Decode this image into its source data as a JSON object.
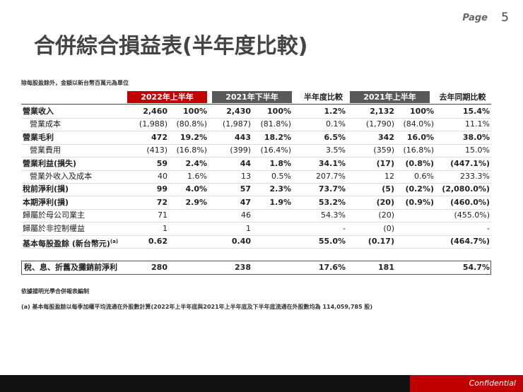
{
  "header": {
    "page_label": "Page",
    "page_number": "5",
    "title": "合併綜合損益表(半年度比較)"
  },
  "unit_note": "除每股盈餘外，金額以新台幣百萬元為單位",
  "table": {
    "headers": [
      "2022年上半年",
      "2021年下半年",
      "半年度比較",
      "2021年上半年",
      "去年同期比較"
    ],
    "rows": [
      {
        "label": "營業收入",
        "cells": [
          "2,460",
          "100%",
          "2,430",
          "100%",
          "1.2%",
          "2,132",
          "100%",
          "15.4%"
        ]
      },
      {
        "label": "營業成本",
        "cells": [
          "(1,988)",
          "(80.8%)",
          "(1,987)",
          "(81.8%)",
          "0.1%",
          "(1,790)",
          "(84.0%)",
          "11.1%"
        ]
      },
      {
        "label": "營業毛利",
        "cells": [
          "472",
          "19.2%",
          "443",
          "18.2%",
          "6.5%",
          "342",
          "16.0%",
          "38.0%"
        ]
      },
      {
        "label": "營業費用",
        "cells": [
          "(413)",
          "(16.8%)",
          "(399)",
          "(16.4%)",
          "3.5%",
          "(359)",
          "(16.8%)",
          "15.0%"
        ]
      },
      {
        "label": "營業利益(損失)",
        "cells": [
          "59",
          "2.4%",
          "44",
          "1.8%",
          "34.1%",
          "(17)",
          "(0.8%)",
          "(447.1%)"
        ]
      },
      {
        "label": "營業外收入及成本",
        "cells": [
          "40",
          "1.6%",
          "13",
          "0.5%",
          "207.7%",
          "12",
          "0.6%",
          "233.3%"
        ]
      },
      {
        "label": "稅前淨利(損)",
        "cells": [
          "99",
          "4.0%",
          "57",
          "2.3%",
          "73.7%",
          "(5)",
          "(0.2%)",
          "(2,080.0%)"
        ]
      },
      {
        "label": "本期淨利(損)",
        "cells": [
          "72",
          "2.9%",
          "47",
          "1.9%",
          "53.2%",
          "(20)",
          "(0.9%)",
          "(460.0%)"
        ]
      },
      {
        "label": "歸屬於母公司業主",
        "cells": [
          "71",
          null,
          "46",
          null,
          "54.3%",
          "(20)",
          null,
          "(455.0%)"
        ]
      },
      {
        "label": "歸屬於非控制權益",
        "cells": [
          "1",
          null,
          "1",
          null,
          "-",
          "(0)",
          null,
          "-"
        ]
      },
      {
        "label": "基本每股盈餘 (新台幣元)",
        "note": "(a)",
        "cells": [
          "0.62",
          null,
          "0.40",
          null,
          "55.0%",
          "(0.17)",
          null,
          "(464.7%)"
        ]
      }
    ],
    "ebitda": {
      "label": "稅、息、折舊及攤銷前淨利",
      "cells": [
        "280",
        null,
        "238",
        null,
        "17.6%",
        "181",
        null,
        "54.7%"
      ]
    }
  },
  "footnotes": [
    "依據揚明光學合併報表編制",
    "(a) 基本每股盈餘以每季加權平均流通在外股數計算(2022年上半年底與2021年上半年底及下半年底流通在外股數均為 114,059,785 股)"
  ],
  "footer": {
    "confidential": "Confidential"
  }
}
